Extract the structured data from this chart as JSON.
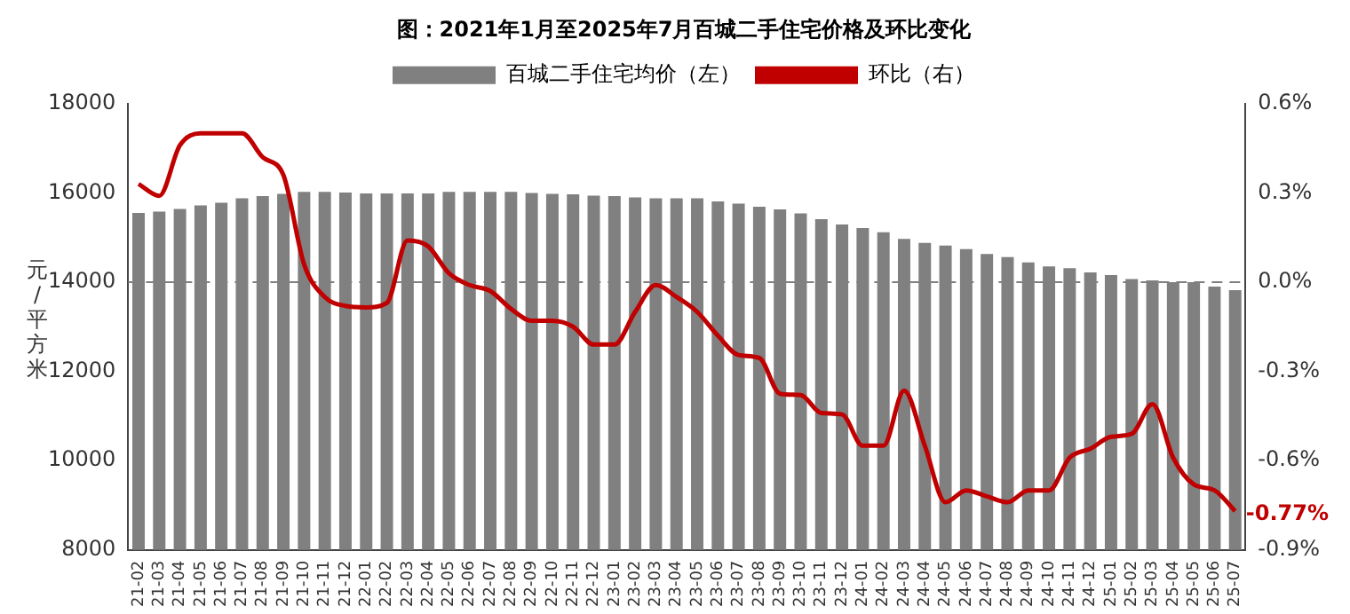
{
  "chart_data": {
    "type": "bar",
    "title": "图：2021年1月至2025年7月百城二手住宅价格及环比变化",
    "ylabel": "元/平方米",
    "categories": [
      "21-02",
      "21-03",
      "21-04",
      "21-05",
      "21-06",
      "21-07",
      "21-08",
      "21-09",
      "21-10",
      "21-11",
      "21-12",
      "22-01",
      "22-02",
      "22-03",
      "22-04",
      "22-05",
      "22-06",
      "22-07",
      "22-08",
      "22-09",
      "22-10",
      "22-11",
      "22-12",
      "23-01",
      "23-02",
      "23-03",
      "23-04",
      "23-05",
      "23-06",
      "23-07",
      "23-08",
      "23-09",
      "23-10",
      "23-11",
      "23-12",
      "24-01",
      "24-02",
      "24-03",
      "24-04",
      "24-05",
      "24-06",
      "24-07",
      "24-08",
      "24-09",
      "24-10",
      "24-11",
      "24-12",
      "25-01",
      "25-02",
      "25-03",
      "25-04",
      "25-05",
      "25-06",
      "25-07"
    ],
    "series": [
      {
        "name": "百城二手住宅均价（左）",
        "color": "#808080",
        "values": [
          15550,
          15580,
          15640,
          15720,
          15780,
          15880,
          15930,
          15980,
          16020,
          16020,
          16010,
          15990,
          15990,
          15990,
          15990,
          16020,
          16020,
          16020,
          16020,
          16000,
          15980,
          15970,
          15940,
          15930,
          15900,
          15880,
          15880,
          15880,
          15810,
          15760,
          15690,
          15630,
          15540,
          15410,
          15290,
          15210,
          15120,
          14970,
          14880,
          14820,
          14740,
          14630,
          14560,
          14440,
          14350,
          14310,
          14220,
          14160,
          14070,
          14040,
          14000,
          14000,
          13900,
          13820
        ]
      },
      {
        "name": "环比（右）",
        "type": "line",
        "axis": "y2",
        "color": "#c00000",
        "values": [
          0.33,
          0.29,
          0.46,
          0.5,
          0.5,
          0.5,
          0.42,
          0.36,
          0.06,
          -0.05,
          -0.08,
          -0.085,
          -0.07,
          0.14,
          0.12,
          0.03,
          -0.01,
          -0.03,
          -0.09,
          -0.13,
          -0.13,
          -0.15,
          -0.21,
          -0.21,
          -0.1,
          -0.01,
          -0.05,
          -0.1,
          -0.18,
          -0.245,
          -0.255,
          -0.375,
          -0.38,
          -0.44,
          -0.445,
          -0.55,
          -0.55,
          -0.365,
          -0.55,
          -0.74,
          -0.7,
          -0.72,
          -0.74,
          -0.7,
          -0.7,
          -0.59,
          -0.56,
          -0.52,
          -0.51,
          -0.41,
          -0.59,
          -0.68,
          -0.7,
          -0.77
        ],
        "value_labels": [
          null,
          null,
          null,
          null,
          null,
          null,
          null,
          null,
          null,
          null,
          null,
          null,
          null,
          null,
          null,
          null,
          null,
          null,
          null,
          null,
          null,
          null,
          null,
          null,
          null,
          null,
          null,
          null,
          null,
          null,
          null,
          null,
          null,
          null,
          null,
          null,
          null,
          null,
          null,
          null,
          null,
          null,
          null,
          null,
          null,
          null,
          null,
          null,
          null,
          null,
          null,
          null,
          null,
          "-0.77%"
        ]
      }
    ],
    "ylim": [
      8000,
      18000
    ],
    "yticks": [
      8000,
      10000,
      12000,
      14000,
      16000,
      18000
    ],
    "y2lim": [
      -0.9,
      0.6
    ],
    "y2ticks": [
      {
        "value": -0.9,
        "label": "-0.9%"
      },
      {
        "value": -0.6,
        "label": "-0.6%"
      },
      {
        "value": -0.3,
        "label": "-0.3%"
      },
      {
        "value": 0,
        "label": "0.0%"
      },
      {
        "value": 0.3,
        "label": "0.3%"
      },
      {
        "value": 0.6,
        "label": "0.6%"
      }
    ],
    "ref_lines": [
      {
        "axis": "y",
        "value": 14000,
        "color": "#808080",
        "line_style": "dashed"
      }
    ],
    "grid": false,
    "legend": "top"
  }
}
